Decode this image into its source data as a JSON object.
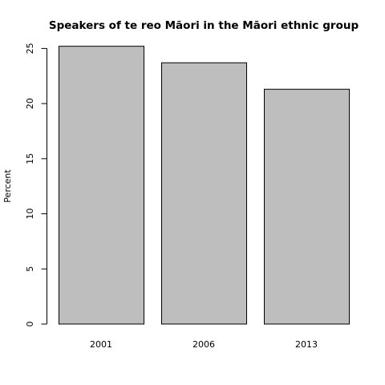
{
  "chart_data": {
    "type": "bar",
    "title": "Speakers of te reo Māori in the Māori ethnic group",
    "xlabel": "",
    "ylabel": "Percent",
    "categories": [
      "2001",
      "2006",
      "2013"
    ],
    "values": [
      25.2,
      23.7,
      21.3
    ],
    "ylim": [
      0,
      25
    ],
    "yticks": [
      0,
      5,
      10,
      15,
      20,
      25
    ],
    "grid": false,
    "colors": {
      "bar_fill": "#bebebe",
      "bar_stroke": "#000000",
      "axis": "#000000",
      "text": "#000000",
      "background": "#ffffff"
    }
  }
}
